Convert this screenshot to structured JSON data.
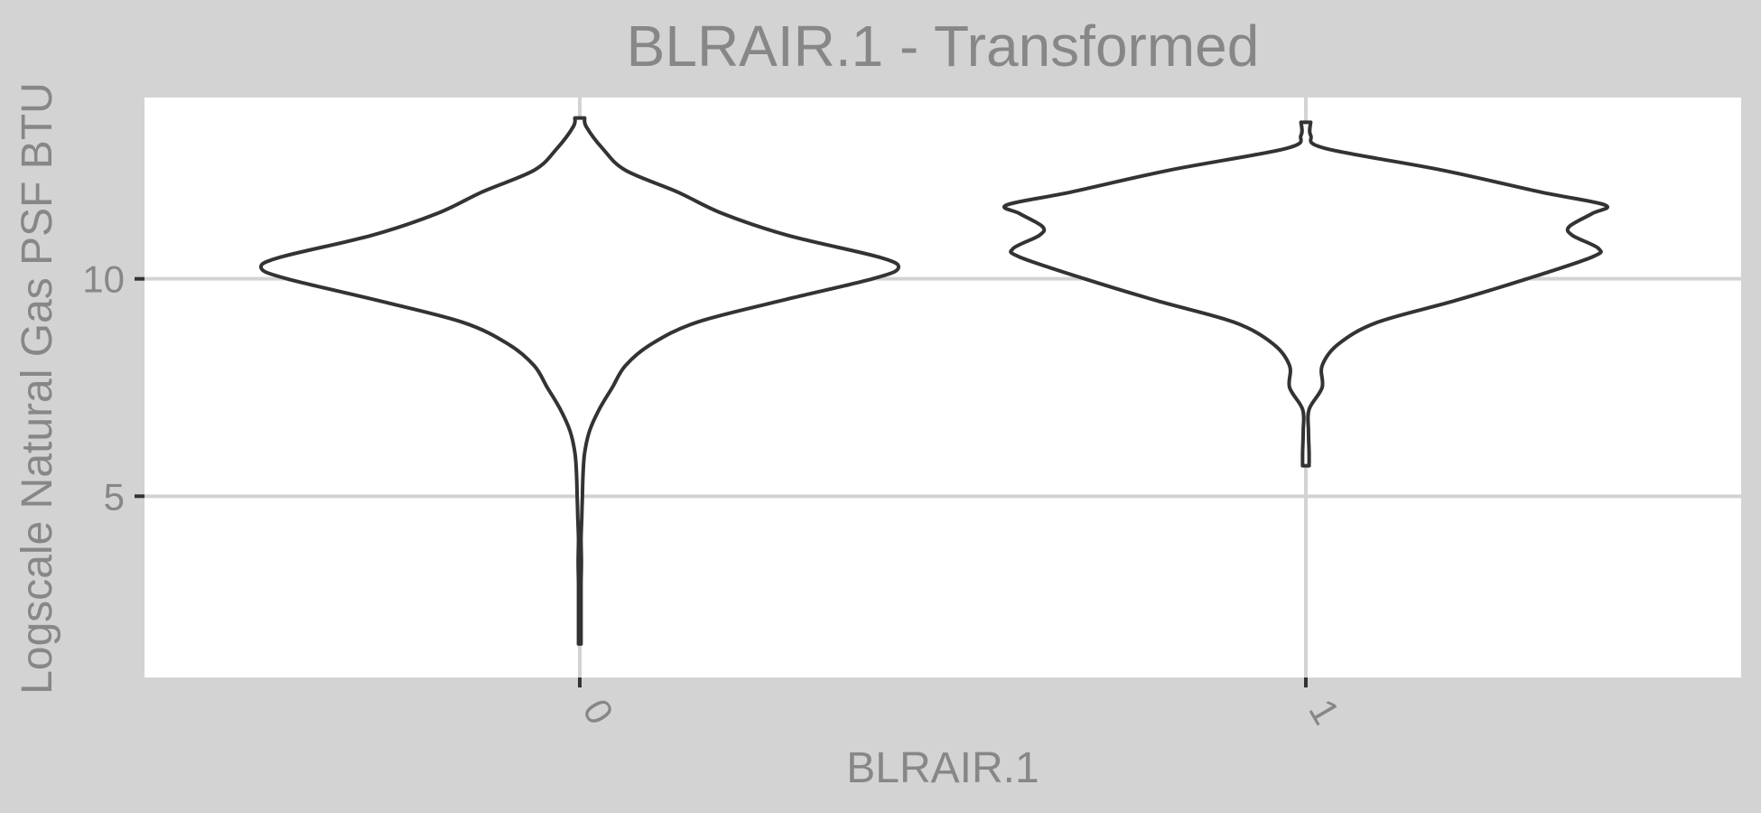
{
  "chart_data": {
    "type": "violin",
    "title": "BLRAIR.1 - Transformed",
    "xlabel": "BLRAIR.1",
    "ylabel": "Logscale Natural Gas PSF BTU",
    "categories": [
      "0",
      "1"
    ],
    "yticks": [
      5,
      10
    ],
    "ylim": [
      0.83,
      14.17
    ],
    "grid": true,
    "legend": "none",
    "series": [
      {
        "category": "0",
        "min": 1.6,
        "max": 13.7,
        "density": [
          [
            1.6,
            0.004
          ],
          [
            2.5,
            0.004
          ],
          [
            3.0,
            0.004
          ],
          [
            3.5,
            0.005
          ],
          [
            4.0,
            0.004
          ],
          [
            4.5,
            0.006
          ],
          [
            5.0,
            0.008
          ],
          [
            5.5,
            0.01
          ],
          [
            6.0,
            0.015
          ],
          [
            6.5,
            0.03
          ],
          [
            7.0,
            0.06
          ],
          [
            7.5,
            0.1
          ],
          [
            8.0,
            0.14
          ],
          [
            8.5,
            0.22
          ],
          [
            9.0,
            0.36
          ],
          [
            9.5,
            0.62
          ],
          [
            10.0,
            0.9
          ],
          [
            10.25,
            0.98
          ],
          [
            10.5,
            0.92
          ],
          [
            11.0,
            0.64
          ],
          [
            11.5,
            0.44
          ],
          [
            12.0,
            0.3
          ],
          [
            12.5,
            0.14
          ],
          [
            13.0,
            0.07
          ],
          [
            13.5,
            0.02
          ],
          [
            13.7,
            0.015
          ]
        ]
      },
      {
        "category": "1",
        "min": 5.7,
        "max": 13.6,
        "density": [
          [
            5.7,
            0.01
          ],
          [
            6.0,
            0.01
          ],
          [
            6.5,
            0.008
          ],
          [
            7.0,
            0.01
          ],
          [
            7.5,
            0.05
          ],
          [
            8.0,
            0.05
          ],
          [
            8.5,
            0.1
          ],
          [
            9.0,
            0.22
          ],
          [
            9.5,
            0.46
          ],
          [
            10.0,
            0.68
          ],
          [
            10.5,
            0.88
          ],
          [
            10.7,
            0.9
          ],
          [
            11.0,
            0.82
          ],
          [
            11.2,
            0.81
          ],
          [
            11.5,
            0.88
          ],
          [
            11.7,
            0.92
          ],
          [
            12.0,
            0.72
          ],
          [
            12.5,
            0.42
          ],
          [
            13.0,
            0.06
          ],
          [
            13.3,
            0.015
          ],
          [
            13.6,
            0.015
          ]
        ]
      }
    ]
  }
}
